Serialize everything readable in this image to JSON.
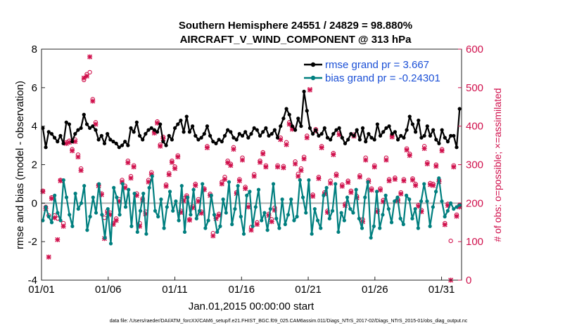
{
  "chart_data": {
    "type": "line",
    "title_line1": "Southern Hemisphere 24551 / 24829 = 98.880%",
    "title_line2": "AIRCRAFT_V_WIND_COMPONENT @ 313 hPa",
    "xlabel": "Jan.01,2015 00:00:00 start",
    "ylabel": "rmse and bias (model - observation)",
    "ylabel_right": "# of obs: o=possible; ×=assimilated",
    "xlim": [
      0,
      31.5
    ],
    "ylim": [
      -4,
      8
    ],
    "ylim_right": [
      0,
      600
    ],
    "x_ticks": [
      0,
      5,
      10,
      15,
      20,
      25,
      30
    ],
    "x_tick_labels": [
      "01/01",
      "01/06",
      "01/11",
      "01/16",
      "01/21",
      "01/26",
      "01/31"
    ],
    "y_ticks": [
      -4,
      -2,
      0,
      2,
      4,
      6,
      8
    ],
    "y_tick_labels": [
      "-4",
      "-2",
      "0",
      "2",
      "4",
      "6",
      "8"
    ],
    "y_right_ticks": [
      0,
      100,
      200,
      300,
      400,
      500,
      600
    ],
    "y_right_tick_labels": [
      "0",
      "100",
      "200",
      "300",
      "400",
      "500",
      "600"
    ],
    "legend": {
      "rmse": "rmse grand pr = 3.667",
      "bias": "bias grand pr = -0.24301"
    },
    "series": [
      {
        "name": "rmse",
        "color": "#000000",
        "values": [
          3.9,
          2.9,
          3.7,
          3.6,
          3.4,
          3.2,
          3.5,
          3.1,
          4.2,
          4.1,
          3.2,
          3.6,
          3.8,
          3.9,
          4.6,
          4.1,
          3.9,
          4.0,
          3.8,
          3.3,
          3.5,
          3.1,
          3.6,
          3.3,
          3.2,
          3.1,
          2.9,
          3.0,
          3.2,
          3.0,
          3.9,
          3.7,
          4.2,
          3.5,
          3.3,
          3.6,
          3.8,
          3.9,
          3.8,
          3.7,
          4.1,
          3.2,
          3.0,
          3.5,
          3.3,
          3.9,
          4.1,
          4.3,
          3.7,
          4.5,
          3.7,
          4.0,
          3.5,
          3.3,
          3.4,
          3.6,
          4.0,
          3.5,
          3.2,
          3.1,
          3.3,
          3.2,
          3.5,
          3.8,
          3.7,
          3.4,
          3.3,
          3.6,
          3.5,
          3.7,
          3.4,
          3.6,
          3.9,
          3.8,
          3.5,
          3.7,
          3.9,
          3.5,
          3.6,
          3.8,
          3.4,
          4.0,
          4.4,
          4.9,
          4.6,
          4.0,
          3.8,
          4.4,
          4.0,
          5.8,
          4.8,
          3.9,
          3.6,
          3.8,
          3.5,
          3.6,
          3.9,
          3.4,
          3.3,
          3.6,
          3.8,
          3.9,
          3.4,
          3.1,
          3.3,
          3.6,
          3.5,
          3.8,
          3.3,
          3.9,
          3.2,
          3.6,
          3.4,
          3.3,
          4.1,
          3.5,
          3.7,
          3.9,
          4.0,
          3.6,
          3.7,
          3.3,
          3.5,
          3.4,
          3.8,
          4.5,
          4.1,
          3.7,
          4.3,
          3.4,
          3.5,
          4.0,
          3.5,
          3.8,
          3.3,
          3.1,
          3.8,
          3.4,
          3.2,
          3.5,
          3.5,
          2.9,
          4.9
        ]
      },
      {
        "name": "bias",
        "color": "#007f7f",
        "values": [
          -0.9,
          -0.2,
          -0.7,
          -1.0,
          0.4,
          -0.5,
          -0.9,
          1.2,
          0.3,
          -0.6,
          -1.2,
          0.5,
          -0.3,
          0.0,
          0.9,
          -1.4,
          -0.7,
          0.3,
          -0.5,
          1.0,
          -0.6,
          -1.8,
          -0.3,
          -2.1,
          0.8,
          0.3,
          -0.6,
          1.0,
          -0.2,
          0.7,
          -1.2,
          0.5,
          -1.5,
          -0.4,
          0.5,
          -1.6,
          0.8,
          1.4,
          -0.4,
          -0.7,
          0.2,
          -1.3,
          -0.2,
          0.6,
          -0.4,
          0.1,
          -0.9,
          0.9,
          -1.5,
          0.3,
          -0.6,
          0.7,
          -0.8,
          -0.4,
          1.0,
          -1.3,
          -0.9,
          0.4,
          -0.6,
          -1.5,
          -1.2,
          0.2,
          -0.5,
          1.1,
          -1.1,
          -0.3,
          0.9,
          -0.7,
          -1.6,
          0.4,
          0.6,
          -1.2,
          -0.2,
          0.7,
          -0.9,
          -0.5,
          -1.4,
          -0.3,
          1.0,
          -0.8,
          -1.3,
          0.2,
          -1.1,
          -0.6,
          0.2,
          -0.9,
          -0.7,
          1.2,
          0.3,
          -0.5,
          1.2,
          -1.6,
          -0.3,
          -0.9,
          -1.3,
          0.4,
          0.8,
          -0.8,
          -0.4,
          1.0,
          -1.5,
          -0.5,
          -0.9,
          0.3,
          -0.3,
          -0.5,
          0.7,
          -0.8,
          -1.3,
          0.3,
          1.1,
          -1.8,
          -1.2,
          0.6,
          -1.3,
          -0.6,
          0.4,
          -0.3,
          -1.0,
          0.1,
          0.3,
          -0.8,
          -1.1,
          0.4,
          0.2,
          -0.8,
          -0.3,
          -1.3,
          0.1,
          1.0,
          0.1,
          -1.2,
          -0.2,
          0.6,
          1.3,
          0.1,
          -0.7,
          -0.4,
          0.0,
          -0.3,
          -0.2,
          -0.1
        ]
      }
    ],
    "obs_possible": [
      232,
      190,
      168,
      215,
      168,
      160,
      260,
      148,
      358,
      362,
      340,
      365,
      326,
      290,
      520,
      535,
      540,
      470,
      410,
      248,
      225,
      162,
      180,
      175,
      148,
      160,
      210,
      260,
      245,
      310,
      270,
      298,
      225,
      148,
      212,
      178,
      260,
      280,
      386,
      412,
      352,
      372,
      248,
      278,
      310,
      295,
      324,
      180,
      212,
      220,
      158,
      192,
      250,
      210,
      178,
      238,
      348,
      224,
      122,
      164,
      172,
      255,
      268,
      310,
      302,
      345,
      228,
      262,
      318,
      242,
      195,
      138,
      275,
      150,
      310,
      332,
      298,
      172,
      158,
      188,
      298,
      370,
      296,
      358,
      410,
      398,
      308,
      276,
      290,
      320,
      375,
      498,
      222,
      392,
      268,
      348,
      228,
      180,
      258,
      330,
      276,
      382,
      248,
      198,
      258,
      232,
      378,
      218,
      272,
      158,
      318,
      260,
      238,
      298,
      182,
      238,
      208,
      318,
      262,
      376,
      266,
      210,
      228,
      262,
      342,
      328,
      264,
      250,
      195,
      182,
      348,
      306,
      252,
      250,
      300,
      260,
      340,
      148,
      198,
      102,
      298,
      170,
      195
    ],
    "obs_assimilated": [
      230,
      186,
      60,
      212,
      162,
      105,
      258,
      140,
      355,
      358,
      336,
      360,
      320,
      285,
      525,
      530,
      580,
      465,
      405,
      245,
      222,
      108,
      175,
      170,
      145,
      155,
      205,
      255,
      240,
      305,
      265,
      294,
      220,
      140,
      208,
      172,
      255,
      275,
      382,
      408,
      348,
      368,
      244,
      274,
      306,
      290,
      320,
      176,
      206,
      216,
      156,
      188,
      246,
      205,
      174,
      235,
      344,
      220,
      115,
      160,
      168,
      250,
      262,
      305,
      298,
      340,
      225,
      258,
      312,
      238,
      190,
      130,
      270,
      145,
      306,
      328,
      294,
      168,
      152,
      182,
      294,
      365,
      292,
      352,
      405,
      392,
      302,
      270,
      285,
      315,
      370,
      494,
      218,
      388,
      264,
      344,
      224,
      176,
      252,
      326,
      272,
      378,
      244,
      194,
      254,
      228,
      374,
      214,
      268,
      152,
      312,
      256,
      234,
      294,
      178,
      234,
      204,
      312,
      258,
      372,
      262,
      206,
      224,
      258,
      338,
      324,
      260,
      246,
      192,
      178,
      342,
      302,
      248,
      246,
      296,
      256,
      336,
      144,
      194,
      0,
      294,
      166,
      190
    ]
  },
  "footer": "data file: /Users/raeder/DAI/ATM_forcXX/CAM6_setup/f.e21.FHIST_BGC.f09_025.CAM6assim.011/Diags_NTrS_2017-02/Diags_NTrS_2015-01/obs_diag_output.nc"
}
